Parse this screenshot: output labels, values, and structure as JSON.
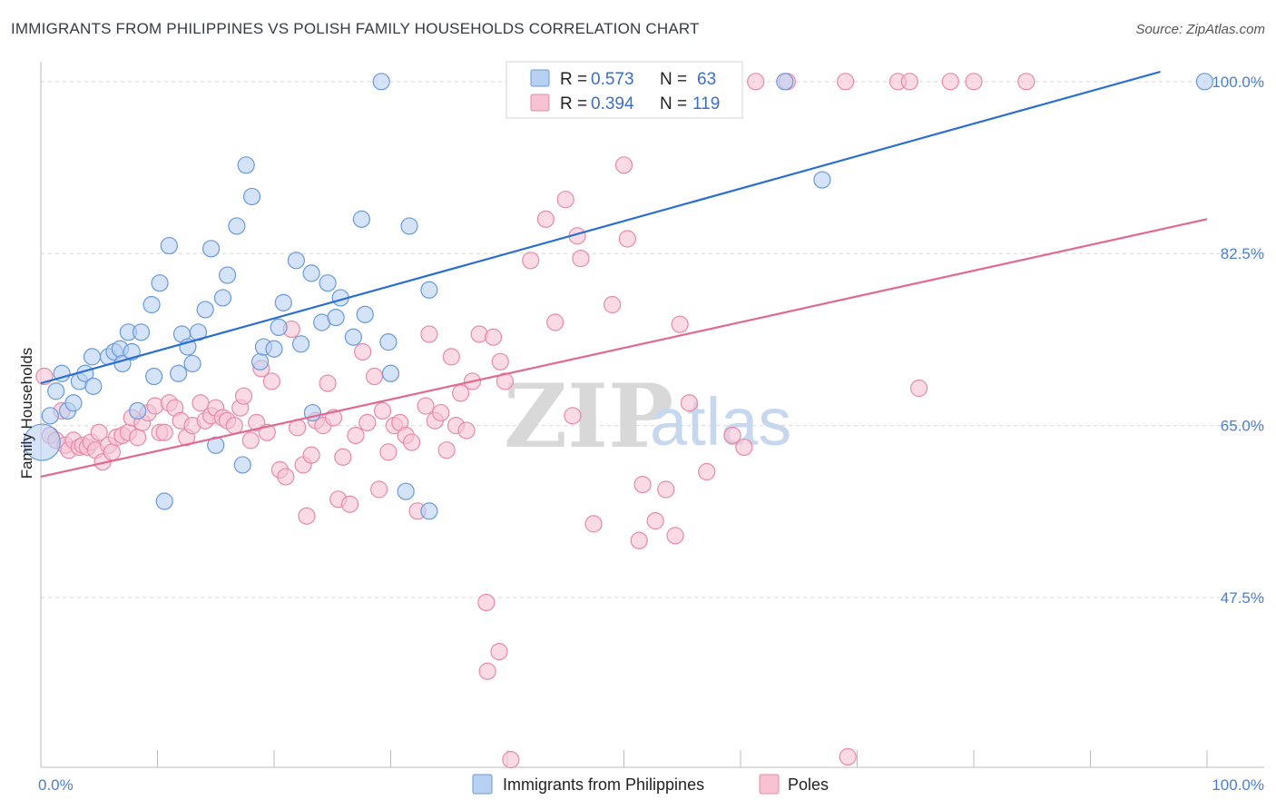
{
  "title": "IMMIGRANTS FROM PHILIPPINES VS POLISH FAMILY HOUSEHOLDS CORRELATION CHART",
  "source": "Source: ZipAtlas.com",
  "watermark": {
    "zip": "ZIP",
    "atlas": "atlas"
  },
  "colors": {
    "blue_fill": "#b8d1f2",
    "blue_stroke": "#6a9ad8",
    "blue_line": "#2a6fcf",
    "pink_fill": "#f7c3d3",
    "pink_stroke": "#e58aa8",
    "pink_line": "#e06893",
    "tick_label": "#4a7fd0",
    "grid": "#d8d8d8"
  },
  "legend": {
    "r_label": "R =",
    "n_label": "N =",
    "entries": [
      {
        "r": "0.573",
        "n": "63"
      },
      {
        "r": "0.394",
        "n": "119"
      }
    ]
  },
  "bottom_legend": [
    "Immigrants from Philippines",
    "Poles"
  ],
  "chart_data": {
    "type": "scatter",
    "title": "IMMIGRANTS FROM PHILIPPINES VS POLISH FAMILY HOUSEHOLDS CORRELATION CHART",
    "xlabel": "",
    "ylabel": "Family Households",
    "xlim": [
      0,
      100
    ],
    "ylim": [
      33,
      101
    ],
    "x_tick_labels": [
      "0.0%",
      "100.0%"
    ],
    "y_ticks": [
      47.5,
      65.0,
      82.5,
      100.0
    ],
    "y_tick_labels": [
      "47.5%",
      "65.0%",
      "82.5%",
      "100.0%"
    ],
    "grid": true,
    "legend_position": "top-center",
    "series": [
      {
        "name": "Immigrants from Philippines",
        "R": 0.573,
        "N": 63,
        "trend": {
          "x0": 0,
          "y0": 69.3,
          "x1": 96,
          "y1": 101
        },
        "points": [
          [
            0.1,
            63.3
          ],
          [
            0.8,
            66.0
          ],
          [
            1.3,
            68.5
          ],
          [
            1.8,
            70.3
          ],
          [
            2.3,
            66.5
          ],
          [
            2.8,
            67.3
          ],
          [
            3.3,
            69.5
          ],
          [
            3.8,
            70.3
          ],
          [
            4.5,
            69.0
          ],
          [
            4.4,
            72.0
          ],
          [
            5.8,
            72.0
          ],
          [
            6.3,
            72.5
          ],
          [
            6.8,
            72.8
          ],
          [
            7.0,
            71.3
          ],
          [
            7.5,
            74.5
          ],
          [
            7.8,
            72.5
          ],
          [
            8.3,
            66.5
          ],
          [
            8.6,
            74.5
          ],
          [
            9.5,
            77.3
          ],
          [
            9.7,
            70.0
          ],
          [
            10.2,
            79.5
          ],
          [
            10.6,
            57.3
          ],
          [
            11.0,
            83.3
          ],
          [
            11.8,
            70.3
          ],
          [
            12.1,
            74.3
          ],
          [
            12.6,
            73.0
          ],
          [
            13.0,
            71.3
          ],
          [
            13.5,
            74.5
          ],
          [
            14.1,
            76.8
          ],
          [
            14.6,
            83.0
          ],
          [
            15.0,
            63.0
          ],
          [
            15.6,
            78.0
          ],
          [
            16.0,
            80.3
          ],
          [
            16.8,
            85.3
          ],
          [
            17.3,
            61.0
          ],
          [
            17.6,
            91.5
          ],
          [
            18.1,
            88.3
          ],
          [
            18.8,
            71.5
          ],
          [
            19.1,
            73.0
          ],
          [
            20.0,
            72.8
          ],
          [
            20.4,
            75.0
          ],
          [
            20.8,
            77.5
          ],
          [
            21.9,
            81.8
          ],
          [
            22.3,
            73.3
          ],
          [
            23.2,
            80.5
          ],
          [
            23.3,
            66.3
          ],
          [
            24.1,
            75.5
          ],
          [
            24.6,
            79.5
          ],
          [
            25.3,
            76.0
          ],
          [
            25.7,
            78.0
          ],
          [
            26.8,
            74.0
          ],
          [
            27.5,
            86.0
          ],
          [
            27.8,
            76.3
          ],
          [
            29.2,
            100.0
          ],
          [
            29.8,
            73.5
          ],
          [
            30.0,
            70.3
          ],
          [
            31.3,
            58.3
          ],
          [
            31.6,
            85.3
          ],
          [
            33.3,
            78.8
          ],
          [
            33.3,
            56.3
          ],
          [
            63.8,
            100.0
          ],
          [
            67.0,
            90.0
          ],
          [
            99.8,
            100.0
          ]
        ]
      },
      {
        "name": "Poles",
        "R": 0.394,
        "N": 119,
        "trend": {
          "x0": 0,
          "y0": 59.8,
          "x1": 100,
          "y1": 86.0
        },
        "points": [
          [
            0.3,
            70.0
          ],
          [
            0.8,
            64.0
          ],
          [
            1.3,
            63.5
          ],
          [
            1.8,
            66.5
          ],
          [
            2.1,
            63.0
          ],
          [
            2.4,
            62.5
          ],
          [
            2.8,
            63.5
          ],
          [
            3.3,
            62.8
          ],
          [
            3.6,
            63.0
          ],
          [
            4.0,
            62.8
          ],
          [
            4.3,
            63.3
          ],
          [
            4.7,
            62.5
          ],
          [
            5.0,
            64.3
          ],
          [
            5.3,
            61.3
          ],
          [
            5.8,
            63.0
          ],
          [
            6.1,
            62.3
          ],
          [
            6.5,
            63.8
          ],
          [
            7.0,
            64.0
          ],
          [
            7.5,
            64.3
          ],
          [
            7.8,
            65.8
          ],
          [
            8.3,
            63.8
          ],
          [
            8.7,
            65.3
          ],
          [
            9.2,
            66.3
          ],
          [
            9.8,
            67.0
          ],
          [
            10.2,
            64.3
          ],
          [
            10.6,
            64.3
          ],
          [
            11.0,
            67.3
          ],
          [
            11.5,
            66.8
          ],
          [
            12.0,
            65.5
          ],
          [
            12.5,
            63.8
          ],
          [
            13.0,
            65.0
          ],
          [
            13.7,
            67.3
          ],
          [
            14.1,
            65.5
          ],
          [
            14.6,
            66.0
          ],
          [
            15.0,
            66.8
          ],
          [
            15.6,
            65.8
          ],
          [
            16.0,
            65.5
          ],
          [
            16.6,
            65.0
          ],
          [
            17.1,
            66.8
          ],
          [
            17.4,
            68.0
          ],
          [
            18.0,
            63.5
          ],
          [
            18.5,
            65.3
          ],
          [
            18.9,
            70.8
          ],
          [
            19.4,
            64.3
          ],
          [
            19.8,
            69.5
          ],
          [
            20.5,
            60.5
          ],
          [
            21.0,
            59.8
          ],
          [
            21.5,
            74.8
          ],
          [
            22.0,
            64.8
          ],
          [
            22.5,
            61.0
          ],
          [
            22.8,
            55.8
          ],
          [
            23.2,
            62.0
          ],
          [
            23.6,
            65.5
          ],
          [
            24.2,
            65.0
          ],
          [
            24.6,
            69.3
          ],
          [
            25.1,
            65.8
          ],
          [
            25.5,
            57.5
          ],
          [
            25.9,
            61.8
          ],
          [
            26.5,
            57.0
          ],
          [
            27.0,
            64.0
          ],
          [
            27.6,
            72.5
          ],
          [
            28.0,
            65.3
          ],
          [
            28.6,
            70.0
          ],
          [
            29.0,
            58.5
          ],
          [
            29.3,
            66.5
          ],
          [
            29.8,
            62.3
          ],
          [
            30.3,
            65.0
          ],
          [
            30.8,
            65.3
          ],
          [
            31.3,
            64.0
          ],
          [
            31.8,
            63.3
          ],
          [
            32.3,
            56.3
          ],
          [
            33.0,
            67.0
          ],
          [
            33.3,
            74.3
          ],
          [
            33.8,
            65.5
          ],
          [
            34.3,
            66.3
          ],
          [
            34.8,
            62.5
          ],
          [
            35.2,
            72.0
          ],
          [
            35.6,
            65.0
          ],
          [
            36.0,
            68.3
          ],
          [
            36.5,
            64.5
          ],
          [
            37.0,
            69.5
          ],
          [
            37.6,
            74.3
          ],
          [
            38.2,
            47.0
          ],
          [
            38.8,
            74.0
          ],
          [
            39.4,
            71.5
          ],
          [
            39.8,
            69.5
          ],
          [
            39.3,
            42.0
          ],
          [
            38.3,
            40.0
          ],
          [
            40.3,
            31.0
          ],
          [
            42.0,
            81.8
          ],
          [
            43.3,
            86.0
          ],
          [
            44.1,
            75.5
          ],
          [
            45.0,
            88.0
          ],
          [
            45.6,
            66.0
          ],
          [
            46.0,
            84.3
          ],
          [
            46.3,
            82.0
          ],
          [
            47.4,
            55.0
          ],
          [
            49.0,
            77.3
          ],
          [
            50.0,
            91.5
          ],
          [
            50.3,
            84.0
          ],
          [
            51.3,
            53.3
          ],
          [
            51.6,
            59.0
          ],
          [
            52.7,
            55.3
          ],
          [
            53.6,
            58.5
          ],
          [
            54.4,
            53.8
          ],
          [
            54.8,
            75.3
          ],
          [
            55.6,
            67.3
          ],
          [
            57.1,
            60.3
          ],
          [
            59.3,
            64.0
          ],
          [
            60.3,
            62.8
          ],
          [
            61.3,
            100.0
          ],
          [
            64.0,
            100.0
          ],
          [
            69.0,
            100.0
          ],
          [
            69.2,
            31.3
          ],
          [
            73.5,
            100.0
          ],
          [
            74.5,
            100.0
          ],
          [
            75.3,
            68.8
          ],
          [
            78.0,
            100.0
          ],
          [
            80.0,
            100.0
          ],
          [
            84.5,
            100.0
          ]
        ]
      }
    ]
  }
}
